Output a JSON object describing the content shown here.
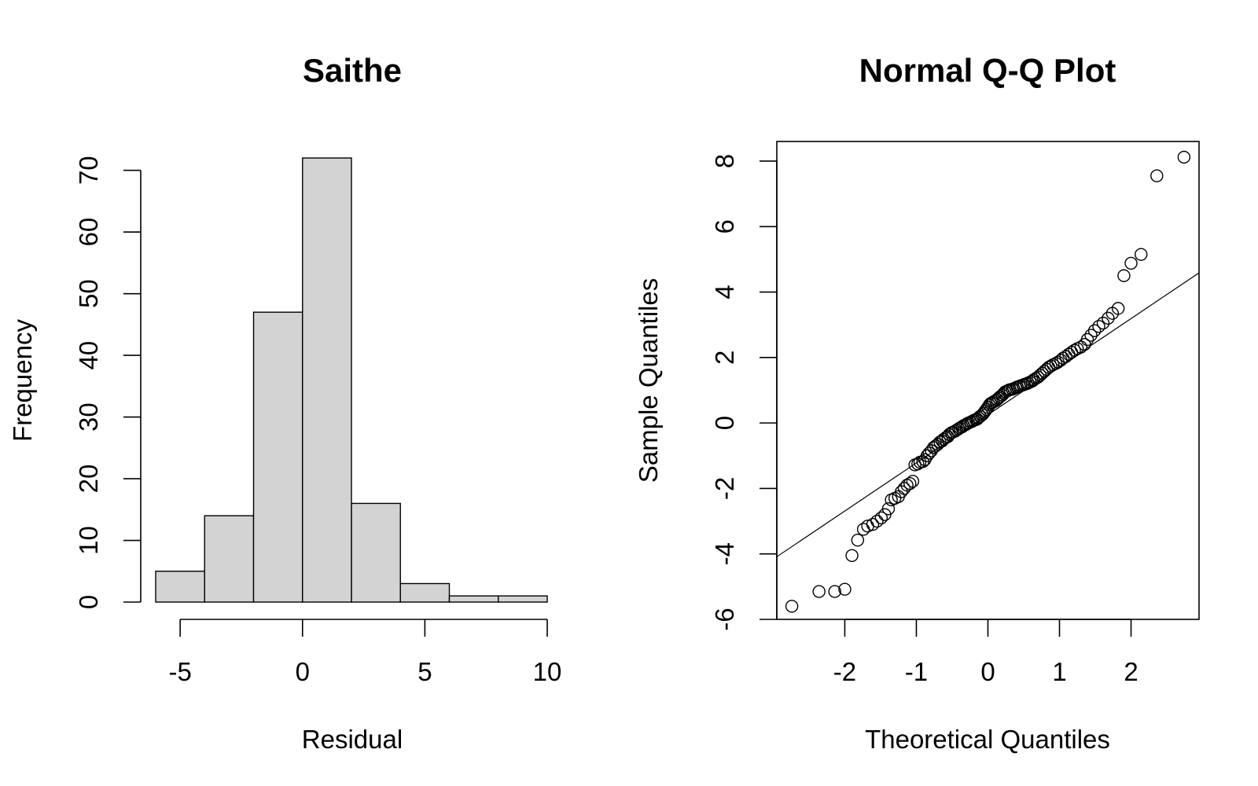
{
  "chart_data": [
    {
      "type": "bar",
      "title": "Saithe",
      "xlabel": "Residual",
      "ylabel": "Frequency",
      "bin_edges": [
        -6,
        -4,
        -2,
        0,
        2,
        4,
        6,
        8,
        10
      ],
      "values": [
        5,
        14,
        47,
        72,
        16,
        3,
        1,
        1
      ],
      "xlim": [
        -6,
        10
      ],
      "ylim": [
        0,
        72
      ],
      "x_ticks": [
        -5,
        0,
        5,
        10
      ],
      "y_ticks": [
        0,
        10,
        20,
        30,
        40,
        50,
        60,
        70
      ],
      "grid": false,
      "colors": {
        "bar_fill": "#d3d3d3",
        "bar_edge": "#000000"
      }
    },
    {
      "type": "scatter",
      "title": "Normal Q-Q Plot",
      "xlabel": "Theoretical Quantiles",
      "ylabel": "Sample Quantiles",
      "xlim": [
        -2.95,
        2.95
      ],
      "ylim": [
        -6,
        8.6
      ],
      "x_ticks": [
        -2,
        -1,
        0,
        1,
        2
      ],
      "y_ticks": [
        -6,
        -4,
        -2,
        0,
        2,
        4,
        6,
        8
      ],
      "grid": false,
      "points": [
        [
          -2.74,
          -5.6
        ],
        [
          -2.36,
          -5.15
        ],
        [
          -2.14,
          -5.15
        ],
        [
          -2.0,
          -5.08
        ],
        [
          -1.9,
          -4.05
        ],
        [
          -1.82,
          -3.58
        ],
        [
          -1.74,
          -3.25
        ],
        [
          -1.68,
          -3.15
        ],
        [
          -1.61,
          -3.1
        ],
        [
          -1.55,
          -3.0
        ],
        [
          -1.49,
          -2.9
        ],
        [
          -1.44,
          -2.8
        ],
        [
          -1.39,
          -2.62
        ],
        [
          -1.35,
          -2.35
        ],
        [
          -1.3,
          -2.3
        ],
        [
          -1.25,
          -2.25
        ],
        [
          -1.21,
          -2.1
        ],
        [
          -1.17,
          -2.0
        ],
        [
          -1.13,
          -1.9
        ],
        [
          -1.09,
          -1.85
        ],
        [
          -1.05,
          -1.78
        ],
        [
          -1.02,
          -1.28
        ],
        [
          -0.98,
          -1.25
        ],
        [
          -0.95,
          -1.2
        ],
        [
          -0.91,
          -1.18
        ],
        [
          -0.88,
          -1.12
        ],
        [
          -0.85,
          -1.0
        ],
        [
          -0.82,
          -0.92
        ],
        [
          -0.79,
          -0.85
        ],
        [
          -0.76,
          -0.75
        ],
        [
          -0.73,
          -0.7
        ],
        [
          -0.7,
          -0.65
        ],
        [
          -0.67,
          -0.58
        ],
        [
          -0.64,
          -0.55
        ],
        [
          -0.62,
          -0.5
        ],
        [
          -0.59,
          -0.45
        ],
        [
          -0.56,
          -0.42
        ],
        [
          -0.54,
          -0.35
        ],
        [
          -0.51,
          -0.3
        ],
        [
          -0.49,
          -0.28
        ],
        [
          -0.46,
          -0.25
        ],
        [
          -0.44,
          -0.22
        ],
        [
          -0.41,
          -0.18
        ],
        [
          -0.39,
          -0.15
        ],
        [
          -0.36,
          -0.12
        ],
        [
          -0.34,
          -0.08
        ],
        [
          -0.31,
          -0.05
        ],
        [
          -0.29,
          -0.02
        ],
        [
          -0.27,
          0.0
        ],
        [
          -0.24,
          0.03
        ],
        [
          -0.22,
          0.05
        ],
        [
          -0.2,
          0.08
        ],
        [
          -0.17,
          0.1
        ],
        [
          -0.15,
          0.12
        ],
        [
          -0.13,
          0.16
        ],
        [
          -0.11,
          0.2
        ],
        [
          -0.08,
          0.25
        ],
        [
          -0.06,
          0.3
        ],
        [
          -0.04,
          0.36
        ],
        [
          -0.02,
          0.42
        ],
        [
          0.0,
          0.48
        ],
        [
          0.02,
          0.55
        ],
        [
          0.04,
          0.6
        ],
        [
          0.06,
          0.62
        ],
        [
          0.08,
          0.65
        ],
        [
          0.11,
          0.68
        ],
        [
          0.13,
          0.72
        ],
        [
          0.15,
          0.76
        ],
        [
          0.17,
          0.8
        ],
        [
          0.2,
          0.85
        ],
        [
          0.22,
          0.9
        ],
        [
          0.24,
          0.95
        ],
        [
          0.27,
          0.98
        ],
        [
          0.29,
          1.0
        ],
        [
          0.31,
          1.02
        ],
        [
          0.34,
          1.03
        ],
        [
          0.36,
          1.05
        ],
        [
          0.39,
          1.08
        ],
        [
          0.41,
          1.1
        ],
        [
          0.44,
          1.12
        ],
        [
          0.46,
          1.14
        ],
        [
          0.49,
          1.16
        ],
        [
          0.51,
          1.18
        ],
        [
          0.54,
          1.2
        ],
        [
          0.56,
          1.22
        ],
        [
          0.59,
          1.25
        ],
        [
          0.62,
          1.28
        ],
        [
          0.64,
          1.32
        ],
        [
          0.67,
          1.36
        ],
        [
          0.7,
          1.4
        ],
        [
          0.73,
          1.46
        ],
        [
          0.76,
          1.52
        ],
        [
          0.79,
          1.58
        ],
        [
          0.82,
          1.64
        ],
        [
          0.85,
          1.7
        ],
        [
          0.88,
          1.74
        ],
        [
          0.91,
          1.78
        ],
        [
          0.95,
          1.82
        ],
        [
          0.98,
          1.86
        ],
        [
          1.02,
          1.92
        ],
        [
          1.05,
          1.98
        ],
        [
          1.09,
          2.03
        ],
        [
          1.13,
          2.1
        ],
        [
          1.17,
          2.16
        ],
        [
          1.21,
          2.22
        ],
        [
          1.25,
          2.27
        ],
        [
          1.3,
          2.32
        ],
        [
          1.35,
          2.4
        ],
        [
          1.39,
          2.55
        ],
        [
          1.44,
          2.68
        ],
        [
          1.49,
          2.82
        ],
        [
          1.55,
          2.95
        ],
        [
          1.61,
          3.05
        ],
        [
          1.68,
          3.2
        ],
        [
          1.74,
          3.35
        ],
        [
          1.82,
          3.5
        ],
        [
          1.9,
          4.5
        ],
        [
          2.0,
          4.88
        ],
        [
          2.14,
          5.15
        ],
        [
          2.36,
          7.55
        ],
        [
          2.74,
          8.12
        ]
      ],
      "reference_line": {
        "intercept": 0.25,
        "slope": 1.47
      },
      "colors": {
        "point": "#000000",
        "line": "#000000"
      }
    }
  ]
}
